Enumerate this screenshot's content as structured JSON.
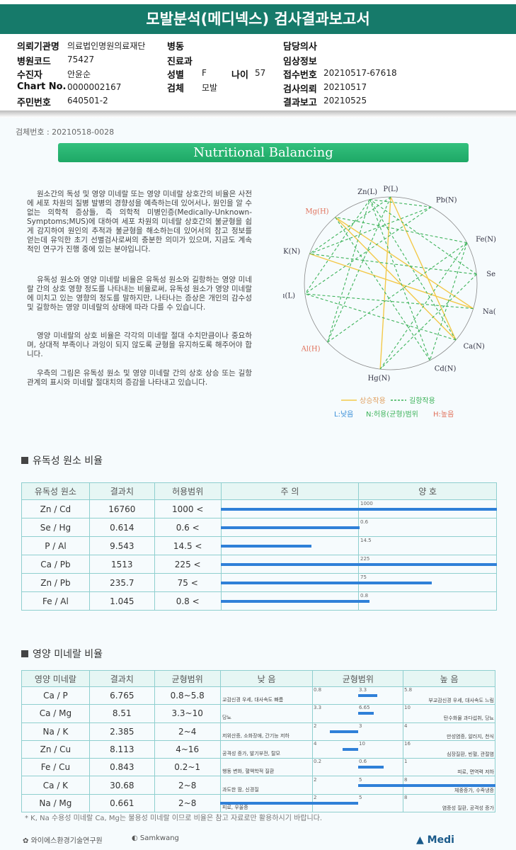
{
  "title": "모발분석(메디넥스) 검사결과보고서",
  "info": {
    "institution_label": "의뢰기관명",
    "institution": "의료법인명원의료재단",
    "ward_label": "병동",
    "doctor_label": "담당의사",
    "hospital_code_label": "병원코드",
    "hospital_code": "75427",
    "dept_label": "진료과",
    "clinical_label": "임상정보",
    "patient_label": "수진자",
    "patient": "안윤순",
    "sex_label": "성별",
    "sex": "F",
    "age_label": "나이",
    "age": "57",
    "receipt_label": "접수번호",
    "receipt": "20210517-67618",
    "chart_label": "Chart No.",
    "chart": "0000002167",
    "specimen_label": "검체",
    "specimen": "모발",
    "request_label": "검사의뢰",
    "request": "20210517",
    "rrn_label": "주민번호",
    "rrn": "640501-2",
    "report_label": "결과보고",
    "report": "20210525"
  },
  "specimen_no": "검체번호 : 20210518-0028",
  "banner": "Nutritional Balancing",
  "paragraphs": [
    "원소간의 독성 및 영양 미네랄 또는 영양 미네랄 상호간의 비율은 사전에 세포 차원의 질병 발병의 경향성을 예측하는데 있어서나, 원인을 알 수 없는 의학적 증상들, 즉 의학적 미병인증(Medically-Unknown-Symptoms;MUS)에 대하여 세포 차원의 미네랄 상호간의 불균형을 쉽게 감지하여 원인의 추적과 불균형을 해소하는데 있어서의 참고 정보를 얻는데 유익한 초기 선별검사로써의 충분한 의미가 있으며, 지금도 계속적인 연구가 진행 중에 있는 분야입니다.",
    "유독성 원소와 영양 미네랄 비율은 유독성 원소와 길항하는 영양 미네랄 간의 상호 영향 정도를 나타내는 비율로써, 유독성 원소가 영양 미네랄에 미치고 있는 영향의 정도를 말하지만, 나타나는 증상은 개인의 감수성 및 길항하는 영양 미네랄의 상태에 따라 다를 수 있습니다.",
    "영양 미네랄의 상호 비율은 각각의 미네랄 절대 수치만큼이나 중요하며, 상대적 부족이나 과잉이 되지 않도록 균형을 유지하도록 해주어야 합니다.",
    "우측의 그림은 유독성 원소 및 영양 미네랄 간의 상호 상승 또는 길항 관계의 표시와 미네랄 절대치의 증감을 나타내고 있습니다."
  ],
  "wheel": {
    "nodes": [
      "P(L)",
      "Pb(N)",
      "Fe(N)",
      "Se(L)",
      "Na(N)",
      "Ca(N)",
      "Cd(N)",
      "Hg(N)",
      "Al(H)",
      "Cu(L)",
      "K(N)",
      "Mg(H)",
      "Zn(L)"
    ],
    "legend_synergy": "상승작용",
    "legend_antagonism": "길항작용",
    "legend_low": "L:낮음",
    "legend_normal": "N:허용(균형)범위",
    "legend_high": "H:높음",
    "colors": {
      "synergy": "#f3c94a",
      "antagonism": "#3db35a",
      "high": "#e0705a",
      "low": "#3a8fd8"
    }
  },
  "toxic": {
    "title": "유독성 원소 비율",
    "headers": [
      "유독성 원소",
      "결과치",
      "허용범위",
      "주    의",
      "양    호"
    ],
    "rows": [
      {
        "ratio": "Zn / Cd",
        "value": "16760",
        "range": "1000 <",
        "tick": "1000",
        "fill": 1.0
      },
      {
        "ratio": "Se / Hg",
        "value": "0.614",
        "range": "0.6 <",
        "tick": "0.6",
        "fill": 0.502
      },
      {
        "ratio": "P / Al",
        "value": "9.543",
        "range": "14.5 <",
        "tick": "14.5",
        "fill": 0.329
      },
      {
        "ratio": "Ca / Pb",
        "value": "1513",
        "range": "225 <",
        "tick": "225",
        "fill": 1.0
      },
      {
        "ratio": "Zn / Pb",
        "value": "235.7",
        "range": "75 <",
        "tick": "75",
        "fill": 0.765
      },
      {
        "ratio": "Fe / Al",
        "value": "1.045",
        "range": "0.8 <",
        "tick": "0.8",
        "fill": 0.538
      }
    ]
  },
  "nutrient": {
    "title": "영양 미네랄 비율",
    "headers": [
      "영양 미네랄",
      "결과치",
      "균형범위",
      "낮    음",
      "균형범위",
      "높    음"
    ],
    "rows": [
      {
        "ratio": "Ca / P",
        "value": "6.765",
        "range": "0.8~5.8",
        "t1": "0.8",
        "t2": "3.3",
        "t3": "5.8",
        "low": "교감신경 우세, 대사속도 빠름",
        "high": "부교감신경 우세, 대사속도 느림",
        "bar_start": 0.5,
        "bar_end": 0.71
      },
      {
        "ratio": "Ca / Mg",
        "value": "8.51",
        "range": "3.3~10",
        "t1": "3.3",
        "t2": "6.65",
        "t3": "10",
        "low": "당뇨",
        "high": "탄수화물 과다섭취, 당뇨",
        "bar_start": 0.5,
        "bar_end": 0.67
      },
      {
        "ratio": "Na / K",
        "value": "2.385",
        "range": "2~4",
        "t1": "2",
        "t2": "3",
        "t3": "4",
        "low": "저위산증, 소화장애, 간기능 저하",
        "high": "만성염증, 알러지, 천식",
        "bar_start": 0.19,
        "bar_end": 0.5
      },
      {
        "ratio": "Zn / Cu",
        "value": "8.113",
        "range": "4~16",
        "t1": "4",
        "t2": "10",
        "t3": "16",
        "low": "공격성 증가, 발기부전, 탈모",
        "high": "심장질환, 빈혈, 관절염",
        "bar_start": 0.33,
        "bar_end": 0.5
      },
      {
        "ratio": "Fe / Cu",
        "value": "0.843",
        "range": "0.2~1",
        "t1": "0.2",
        "t2": "0.6",
        "t3": "1",
        "low": "행동 변화, 혈액학적 질환",
        "high": "피로, 면역력 저하",
        "bar_start": 0.5,
        "bar_end": 0.78
      },
      {
        "ratio": "Ca / K",
        "value": "30.68",
        "range": "2~8",
        "t1": "2",
        "t2": "5",
        "t3": "8",
        "low": "과도한 땀, 신경질",
        "high": "체중증가, 수족냉증",
        "bar_start": 0.5,
        "bar_end": 1.0
      },
      {
        "ratio": "Na / Mg",
        "value": "0.661",
        "range": "2~8",
        "t1": "2",
        "t2": "5",
        "t3": "8",
        "low": "피로, 우울증",
        "high": "염증성 질환, 공격성 증가",
        "bar_start": 0.0,
        "bar_end": 0.5
      }
    ]
  },
  "footnote": "* K, Na 수용성 미네랄 Ca, Mg는 불용성 미네랄 이므로 비율은 참고 자료로만 활용하시기 바랍니다.",
  "footer": {
    "left": "와이에스환경기술연구원",
    "mid": "Samkwang",
    "right": "Medi"
  }
}
